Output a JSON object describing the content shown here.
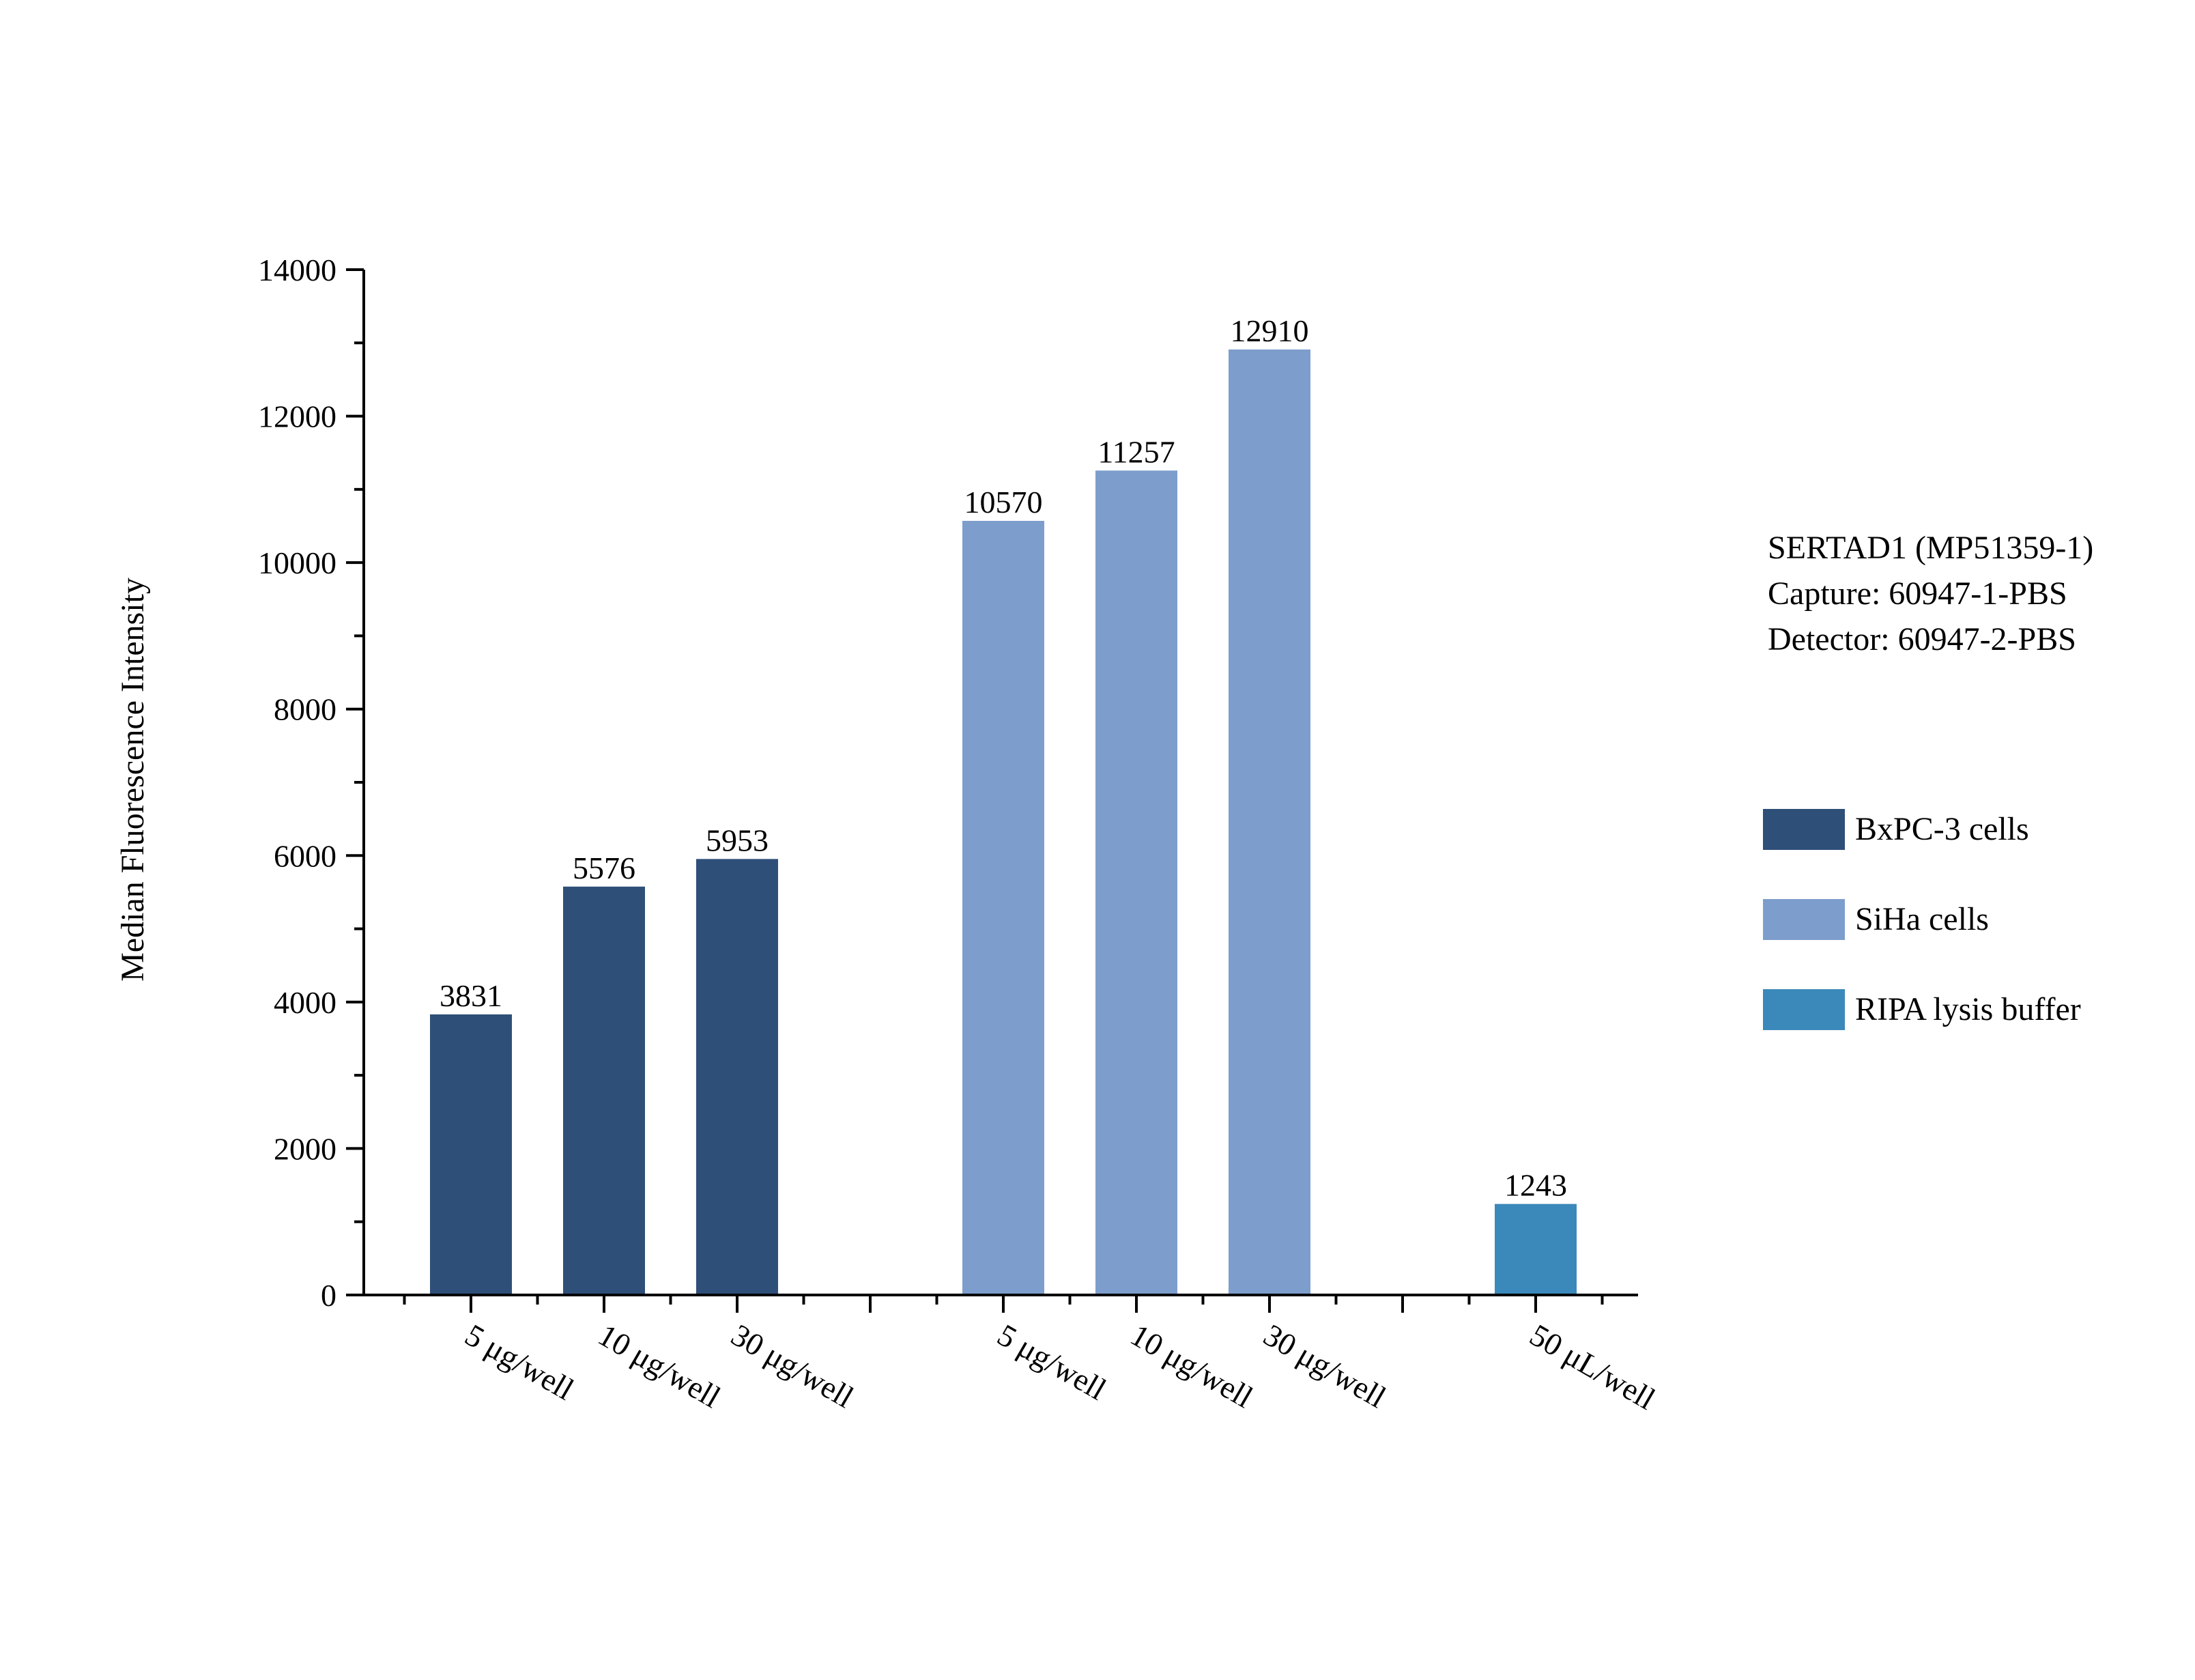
{
  "chart_data": {
    "type": "bar",
    "ylabel": "Median Fluorescence Intensity",
    "xlabel": "",
    "ylim": [
      0,
      14000
    ],
    "y_major_ticks": [
      0,
      2000,
      4000,
      6000,
      8000,
      10000,
      12000,
      14000
    ],
    "y_minor_step": 1000,
    "grid": false,
    "legend_position": "right",
    "categories": [
      "5 μg/well",
      "10 μg/well",
      "30 μg/well",
      "5 μg/well",
      "10 μg/well",
      "30 μg/well",
      "50 μL/well"
    ],
    "values": [
      3831,
      5576,
      5953,
      10570,
      11257,
      12910,
      1243
    ],
    "data_labels": [
      "3831",
      "5576",
      "5953",
      "10570",
      "11257",
      "12910",
      "1243"
    ],
    "series": [
      {
        "name": "BxPC-3 cells",
        "color": "#2e4f78",
        "category_indices": [
          0,
          1,
          2
        ]
      },
      {
        "name": "SiHa cells",
        "color": "#7d9ecc",
        "category_indices": [
          3,
          4,
          5
        ]
      },
      {
        "name": "RIPA lysis buffer",
        "color": "#3b89ba",
        "category_indices": [
          6
        ]
      }
    ],
    "info_text": [
      "SERTAD1 (MP51359-1)",
      "Capture: 60947-1-PBS",
      "Detector: 60947-2-PBS"
    ]
  }
}
